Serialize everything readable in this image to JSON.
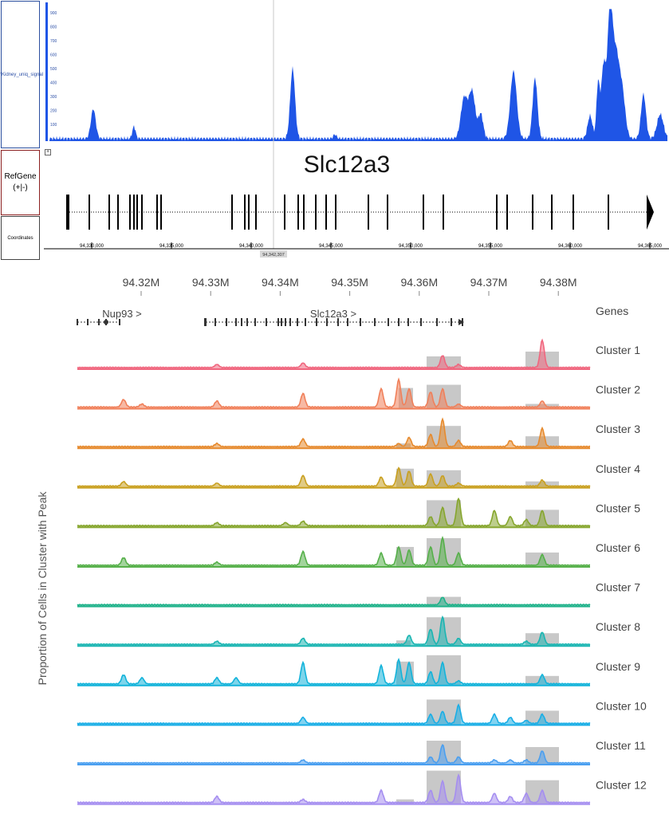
{
  "browser": {
    "signal_track_label": "mKidney_uniq_signal",
    "signal_scale_ticks": [
      "900",
      "800",
      "700",
      "600",
      "500",
      "400",
      "300",
      "200",
      "100"
    ],
    "gene_track_label": "RefGene",
    "gene_track_strand": "(+|-)",
    "coord_track_label": "Coordinates",
    "expand_symbol": "+",
    "gene_name": "Slc12a3",
    "coordinate_ticks": [
      "94,330,000",
      "94,335,000",
      "94,340,000",
      "94,345,000",
      "94,350,000",
      "94,355,000",
      "94,360,000",
      "94,365,000"
    ],
    "cursor_position": "94,342,307",
    "colors": {
      "signal": "#1f55e6",
      "gene": "#000000",
      "signal_border": "#2c4f9f",
      "gene_border": "#8b1f1f"
    }
  },
  "tracks": {
    "axis_ticks": [
      "94.32M",
      "94.33M",
      "94.34M",
      "94.35M",
      "94.36M",
      "94.37M",
      "94.38M"
    ],
    "genes_label": "Genes",
    "genes": [
      {
        "name": "Nup93 >"
      },
      {
        "name": "Slc12a3 >"
      }
    ],
    "y_axis_title": "Proportion of Cells in Cluster with Peak",
    "clusters": [
      {
        "label": "Cluster 1",
        "color": "#f0667e"
      },
      {
        "label": "Cluster 2",
        "color": "#f0805a"
      },
      {
        "label": "Cluster 3",
        "color": "#e68a2e"
      },
      {
        "label": "Cluster 4",
        "color": "#c9a020"
      },
      {
        "label": "Cluster 5",
        "color": "#86a62e"
      },
      {
        "label": "Cluster 6",
        "color": "#56b04a"
      },
      {
        "label": "Cluster 7",
        "color": "#1fb28a"
      },
      {
        "label": "Cluster 8",
        "color": "#1ab5b2"
      },
      {
        "label": "Cluster 9",
        "color": "#12b3da"
      },
      {
        "label": "Cluster 10",
        "color": "#19aee6"
      },
      {
        "label": "Cluster 11",
        "color": "#4a9ff0"
      },
      {
        "label": "Cluster 12",
        "color": "#a58ef0"
      }
    ],
    "highlight_color": "#c8c8c8"
  }
}
